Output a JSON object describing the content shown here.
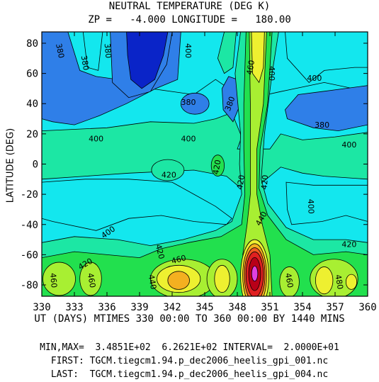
{
  "title_line1": "NEUTRAL TEMPERATURE (DEG K)",
  "title_line2": "ZP =   -4.000 LONGITUDE =   180.00",
  "ylabel": "LATITUDE (DEG)",
  "xlabel": "UT (DAYS) MTIMES 330 00:00 TO 360 00:00 BY 1440 MINS",
  "footer": {
    "minmax": "MIN,MAX=  3.4851E+02  6.2621E+02 INTERVAL=  2.0000E+01",
    "first": "FIRST: TGCM.tiegcm1.94.p_dec2006_heelis_gpi_001.nc",
    "last": "LAST:  TGCM.tiegcm1.94.p_dec2006_heelis_gpi_004.nc"
  },
  "colors": {
    "c360": "#0a24c8",
    "c380": "#2f7fe8",
    "c400": "#13e7ee",
    "c420": "#1ce7a4",
    "c440": "#22e04e",
    "c460": "#a8ef32",
    "c480": "#eef030",
    "c500": "#f4b020",
    "c540": "#f05a20",
    "c560": "#e02020",
    "c600": "#b80018",
    "c620": "#e040e0"
  },
  "chart_data": {
    "type": "heatmap",
    "x_range": [
      330,
      360
    ],
    "y_range": [
      -87.5,
      87.5
    ],
    "x_ticks": [
      330,
      333,
      336,
      339,
      342,
      345,
      348,
      351,
      354,
      357,
      360
    ],
    "y_ticks": [
      -80,
      -60,
      -40,
      -20,
      0,
      20,
      40,
      60,
      80
    ],
    "contour_interval": 20,
    "min": 348.51,
    "max": 626.21,
    "contour_labels": [
      {
        "text": "380",
        "x": 331.7,
        "y": 75,
        "angle": 78
      },
      {
        "text": "380",
        "x": 334.0,
        "y": 67,
        "angle": 80
      },
      {
        "text": "380",
        "x": 336.1,
        "y": 75,
        "angle": 85
      },
      {
        "text": "400",
        "x": 343.5,
        "y": 75,
        "angle": 90
      },
      {
        "text": "460",
        "x": 349.2,
        "y": 64,
        "angle": -80
      },
      {
        "text": "400",
        "x": 351.2,
        "y": 60,
        "angle": 90
      },
      {
        "text": "400",
        "x": 355.1,
        "y": 57,
        "angle": 0
      },
      {
        "text": "380",
        "x": 343.5,
        "y": 41,
        "angle": 0
      },
      {
        "text": "380",
        "x": 347.3,
        "y": 40,
        "angle": -70
      },
      {
        "text": "380",
        "x": 355.8,
        "y": 26,
        "angle": 0
      },
      {
        "text": "400",
        "x": 335.0,
        "y": 17,
        "angle": 0
      },
      {
        "text": "400",
        "x": 343.5,
        "y": 17,
        "angle": 0
      },
      {
        "text": "400",
        "x": 358.3,
        "y": 13,
        "angle": 0
      },
      {
        "text": "420",
        "x": 346.1,
        "y": -2,
        "angle": -80
      },
      {
        "text": "420",
        "x": 341.7,
        "y": -7,
        "angle": 0
      },
      {
        "text": "420",
        "x": 348.3,
        "y": -12,
        "angle": -80
      },
      {
        "text": "420",
        "x": 350.5,
        "y": -12,
        "angle": -85
      },
      {
        "text": "400",
        "x": 354.8,
        "y": -28,
        "angle": 88
      },
      {
        "text": "440",
        "x": 350.2,
        "y": -36,
        "angle": -60
      },
      {
        "text": "400",
        "x": 336.1,
        "y": -45,
        "angle": -35
      },
      {
        "text": "420",
        "x": 358.3,
        "y": -53,
        "angle": 0
      },
      {
        "text": "420",
        "x": 340.9,
        "y": -58,
        "angle": 75
      },
      {
        "text": "420",
        "x": 334.0,
        "y": -66,
        "angle": -30
      },
      {
        "text": "460",
        "x": 342.6,
        "y": -63,
        "angle": -15
      },
      {
        "text": "440",
        "x": 340.2,
        "y": -78,
        "angle": 80
      },
      {
        "text": "460",
        "x": 331.1,
        "y": -77,
        "angle": 85
      },
      {
        "text": "460",
        "x": 334.6,
        "y": -77,
        "angle": 80
      },
      {
        "text": "460",
        "x": 352.8,
        "y": -77,
        "angle": 80
      },
      {
        "text": "480",
        "x": 357.4,
        "y": -78,
        "angle": 80
      }
    ]
  }
}
